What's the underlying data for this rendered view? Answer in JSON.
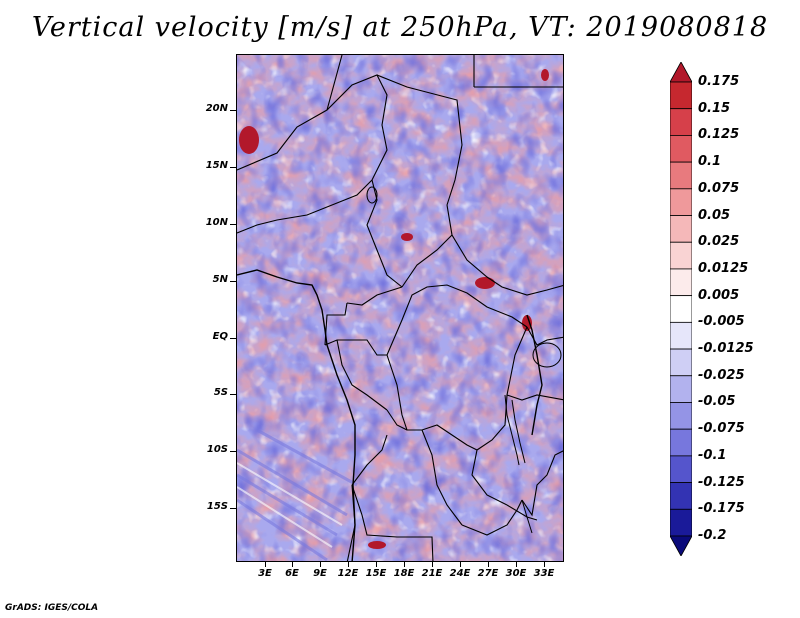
{
  "title": "Vertical velocity [m/s] at 250hPa, VT: 2019080818",
  "credit": "GrADS: IGES/COLA",
  "map": {
    "lat_labels": [
      "20N",
      "15N",
      "10N",
      "5N",
      "EQ",
      "5S",
      "10S",
      "15S"
    ],
    "lon_labels": [
      "3E",
      "6E",
      "9E",
      "12E",
      "15E",
      "18E",
      "21E",
      "24E",
      "27E",
      "30E",
      "33E"
    ]
  },
  "colorbar": {
    "labels": [
      "0.175",
      "0.15",
      "0.125",
      "0.1",
      "0.075",
      "0.05",
      "0.025",
      "0.0125",
      "0.005",
      "-0.005",
      "-0.0125",
      "-0.025",
      "-0.05",
      "-0.075",
      "-0.1",
      "-0.125",
      "-0.175",
      "-0.2"
    ],
    "colors": [
      "#b2182b",
      "#c6282f",
      "#d6404a",
      "#e05a61",
      "#e87a7e",
      "#ef999b",
      "#f5b8b9",
      "#f9d3d3",
      "#fcebeb",
      "#ffffff",
      "#e6e6fa",
      "#cfcff5",
      "#b2b2ee",
      "#9494e6",
      "#7777dd",
      "#5555cc",
      "#3333b3",
      "#1a1a99",
      "#0a0a7a"
    ]
  }
}
